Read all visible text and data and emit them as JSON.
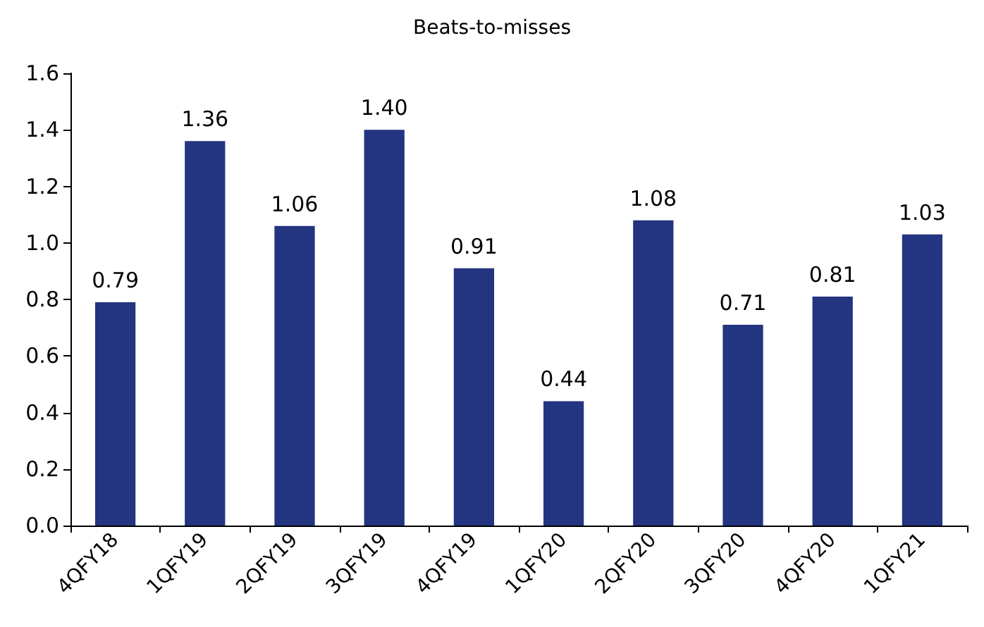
{
  "chart_data": {
    "type": "bar",
    "title": "Beats-to-misses",
    "categories": [
      "4QFY18",
      "1QFY19",
      "2QFY19",
      "3QFY19",
      "4QFY19",
      "1QFY20",
      "2QFY20",
      "3QFY20",
      "4QFY20",
      "1QFY21"
    ],
    "values": [
      0.79,
      1.36,
      1.06,
      1.4,
      0.91,
      0.44,
      1.08,
      0.71,
      0.81,
      1.03
    ],
    "value_labels": [
      "0.79",
      "1.36",
      "1.06",
      "1.40",
      "0.91",
      "0.44",
      "1.08",
      "0.71",
      "0.81",
      "1.03"
    ],
    "color": "#233480",
    "ylim": [
      0,
      1.6
    ],
    "yticks": [
      {
        "value": 0,
        "label": "0.0"
      },
      0.2,
      0.4,
      0.6,
      0.8,
      {
        "value": 1,
        "label": "1.0"
      },
      1.2,
      1.4,
      1.6
    ],
    "grid": false
  }
}
